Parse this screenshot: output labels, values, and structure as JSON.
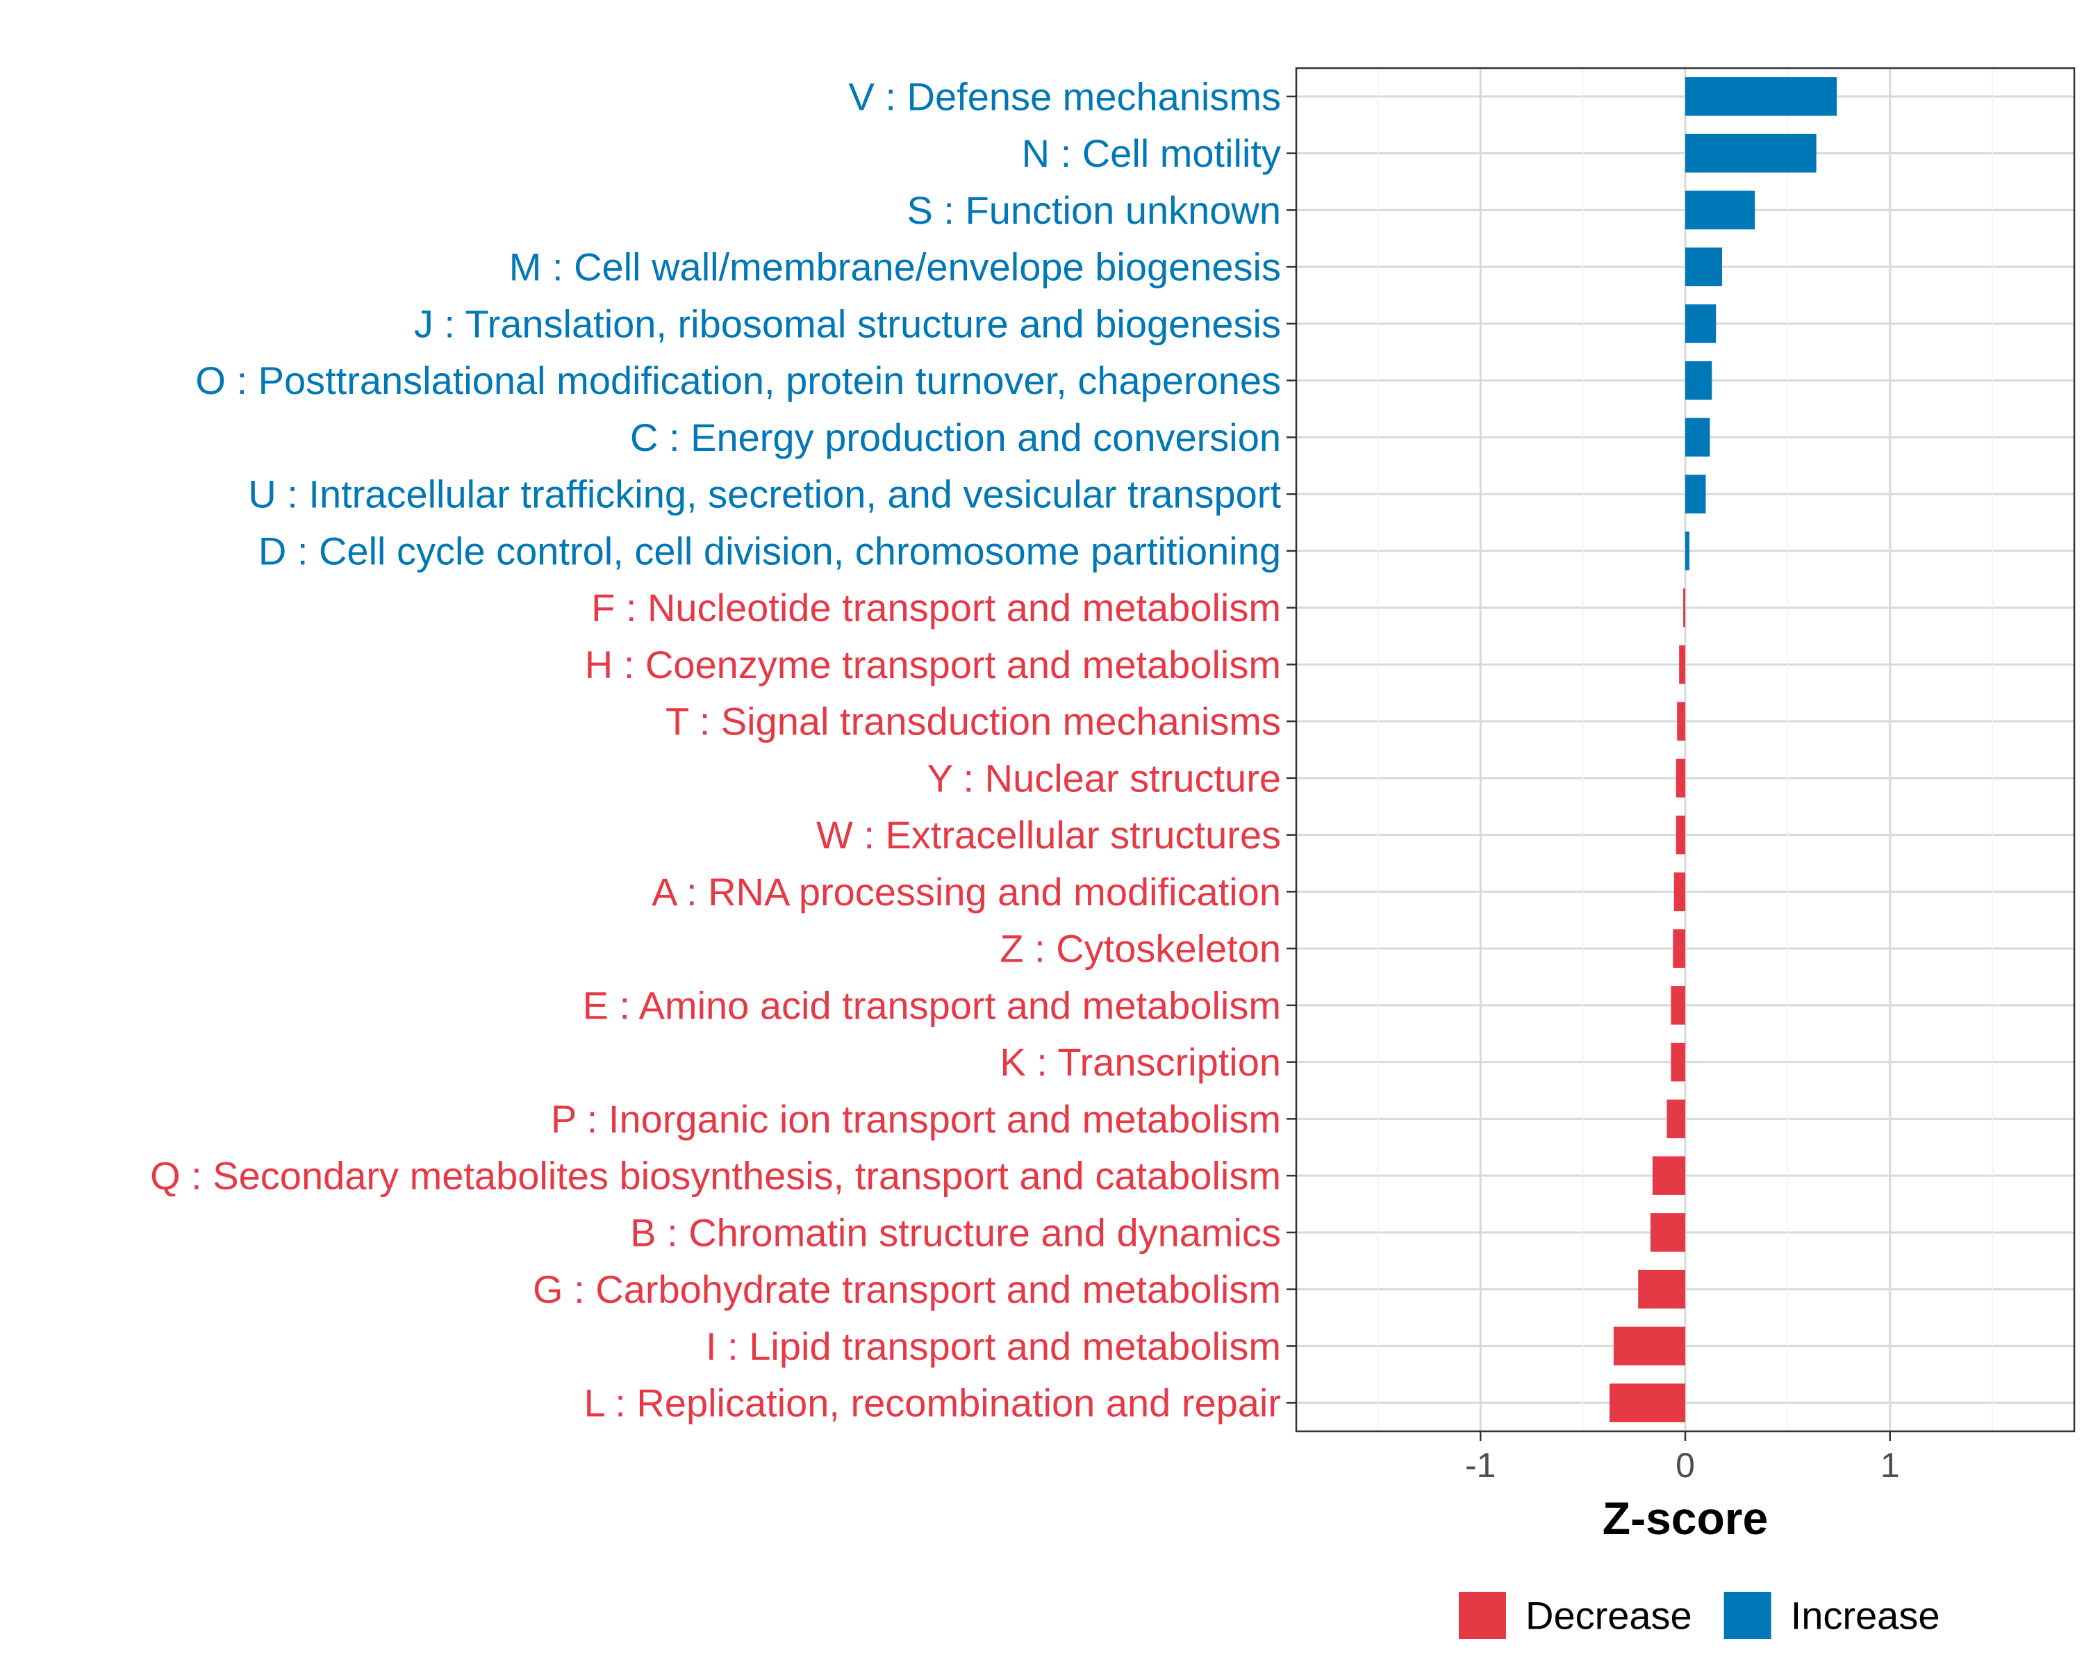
{
  "chart_data": {
    "type": "bar",
    "orientation": "horizontal",
    "xlabel": "Z-score",
    "ylabel": "",
    "xlim": [
      -1.9,
      1.9
    ],
    "x_ticks": [
      -1,
      0,
      1
    ],
    "x_tick_labels": [
      "-1",
      "0",
      "1"
    ],
    "grid": true,
    "legend_position": "bottom",
    "colors": {
      "Decrease": "#e63946",
      "Increase": "#0077b6"
    },
    "legend": [
      {
        "label": "Decrease",
        "color": "#e63946"
      },
      {
        "label": "Increase",
        "color": "#0077b6"
      }
    ],
    "categories": [
      {
        "label": "V : Defense mechanisms",
        "value": 0.74,
        "direction": "Increase"
      },
      {
        "label": "N : Cell motility",
        "value": 0.64,
        "direction": "Increase"
      },
      {
        "label": "S : Function unknown",
        "value": 0.34,
        "direction": "Increase"
      },
      {
        "label": "M : Cell wall/membrane/envelope biogenesis",
        "value": 0.18,
        "direction": "Increase"
      },
      {
        "label": "J : Translation, ribosomal structure and biogenesis",
        "value": 0.15,
        "direction": "Increase"
      },
      {
        "label": "O : Posttranslational modification, protein turnover, chaperones",
        "value": 0.13,
        "direction": "Increase"
      },
      {
        "label": "C : Energy production and conversion",
        "value": 0.12,
        "direction": "Increase"
      },
      {
        "label": "U : Intracellular trafficking, secretion, and vesicular transport",
        "value": 0.1,
        "direction": "Increase"
      },
      {
        "label": "D : Cell cycle control, cell division, chromosome partitioning",
        "value": 0.02,
        "direction": "Increase"
      },
      {
        "label": "F : Nucleotide transport and metabolism",
        "value": -0.01,
        "direction": "Decrease"
      },
      {
        "label": "H : Coenzyme transport and metabolism",
        "value": -0.03,
        "direction": "Decrease"
      },
      {
        "label": "T : Signal transduction mechanisms",
        "value": -0.04,
        "direction": "Decrease"
      },
      {
        "label": "Y : Nuclear structure",
        "value": -0.045,
        "direction": "Decrease"
      },
      {
        "label": "W : Extracellular structures",
        "value": -0.045,
        "direction": "Decrease"
      },
      {
        "label": "A : RNA processing and modification",
        "value": -0.055,
        "direction": "Decrease"
      },
      {
        "label": "Z : Cytoskeleton",
        "value": -0.06,
        "direction": "Decrease"
      },
      {
        "label": "E : Amino acid transport and metabolism",
        "value": -0.07,
        "direction": "Decrease"
      },
      {
        "label": "K : Transcription",
        "value": -0.07,
        "direction": "Decrease"
      },
      {
        "label": "P : Inorganic ion transport and metabolism",
        "value": -0.09,
        "direction": "Decrease"
      },
      {
        "label": "Q : Secondary metabolites biosynthesis, transport and catabolism",
        "value": -0.16,
        "direction": "Decrease"
      },
      {
        "label": "B : Chromatin structure and dynamics",
        "value": -0.17,
        "direction": "Decrease"
      },
      {
        "label": "G : Carbohydrate transport and metabolism",
        "value": -0.23,
        "direction": "Decrease"
      },
      {
        "label": "I : Lipid transport and metabolism",
        "value": -0.35,
        "direction": "Decrease"
      },
      {
        "label": "L : Replication, recombination and repair",
        "value": -0.37,
        "direction": "Decrease"
      }
    ]
  }
}
